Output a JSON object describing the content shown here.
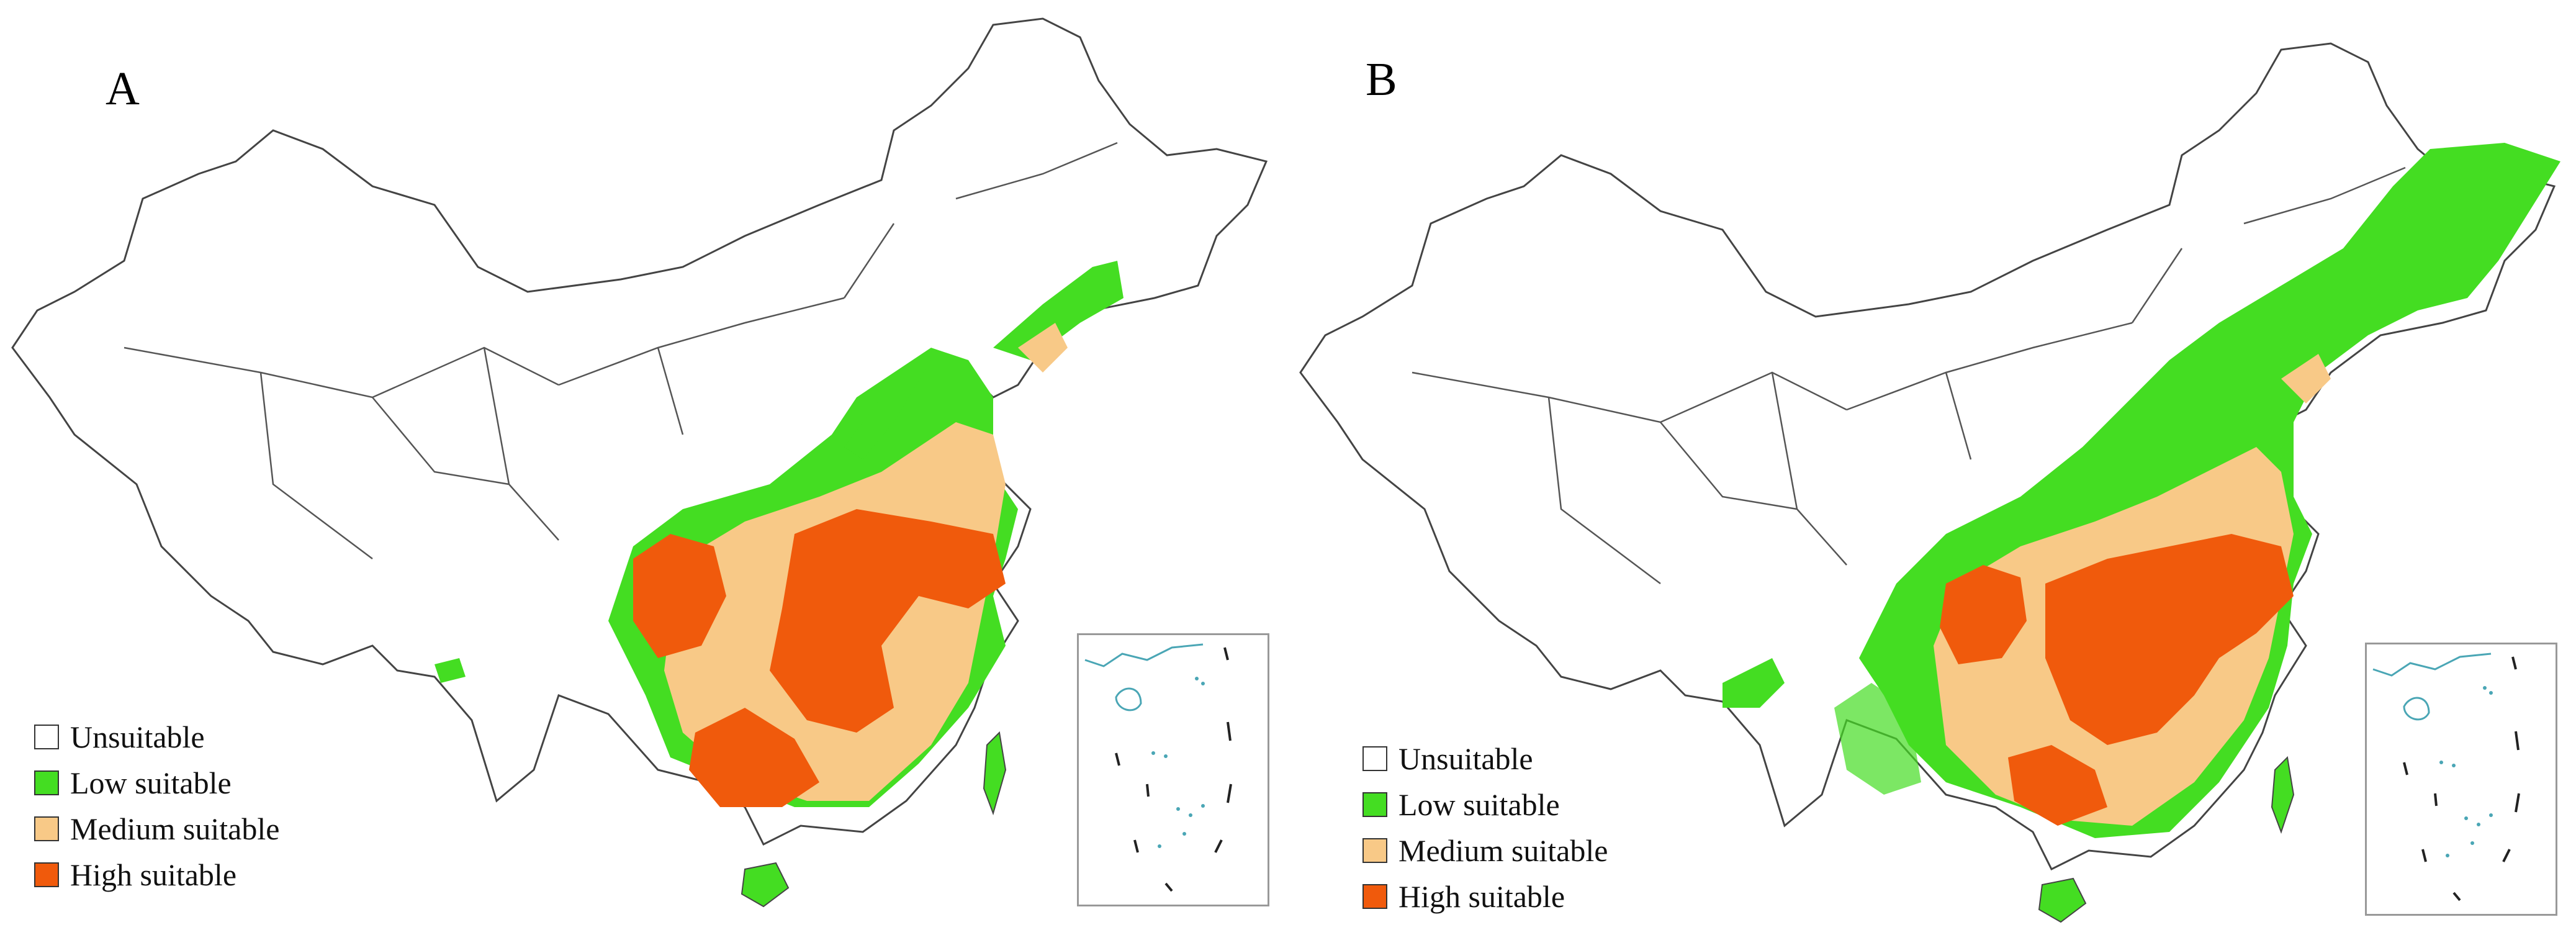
{
  "colors": {
    "unsuitable": "#ffffff",
    "low": "#44dd22",
    "medium": "#f8c987",
    "high": "#f05a0c",
    "border": "#444444",
    "inset_sea": "#4aa6b5"
  },
  "panels": [
    {
      "label": "A",
      "legend": [
        {
          "text": "Unsuitable",
          "color": "#ffffff"
        },
        {
          "text": "Low suitable",
          "color": "#44dd22"
        },
        {
          "text": "Medium suitable",
          "color": "#f8c987"
        },
        {
          "text": "High suitable",
          "color": "#f05a0c"
        }
      ]
    },
    {
      "label": "B",
      "legend": [
        {
          "text": "Unsuitable",
          "color": "#ffffff"
        },
        {
          "text": "Low suitable",
          "color": "#44dd22"
        },
        {
          "text": "Medium suitable",
          "color": "#f8c987"
        },
        {
          "text": "High suitable",
          "color": "#f05a0c"
        }
      ]
    }
  ]
}
